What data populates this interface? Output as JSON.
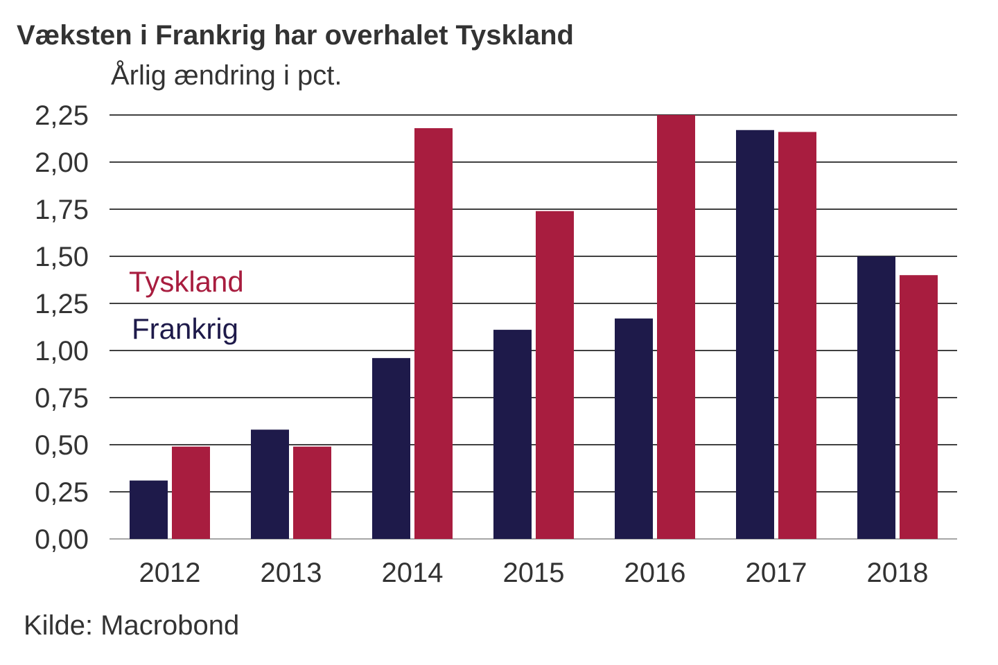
{
  "chart_data": {
    "type": "bar",
    "title": "Væksten i Frankrig har overhalet Tyskland",
    "subtitle": "Årlig ændring i pct.",
    "source": "Kilde: Macrobond",
    "categories": [
      "2012",
      "2013",
      "2014",
      "2015",
      "2016",
      "2017",
      "2018"
    ],
    "series": [
      {
        "name": "Frankrig",
        "color": "#1e1a4a",
        "values": [
          0.31,
          0.58,
          0.96,
          1.11,
          1.17,
          2.17,
          1.5
        ]
      },
      {
        "name": "Tyskland",
        "color": "#a81d3f",
        "values": [
          0.49,
          0.49,
          2.18,
          1.74,
          2.25,
          2.16,
          1.4
        ]
      }
    ],
    "ylim": [
      0,
      2.25
    ],
    "yticks": [
      "0,00",
      "0,25",
      "0,50",
      "0,75",
      "1,00",
      "1,25",
      "1,50",
      "1,75",
      "2,00",
      "2,25"
    ],
    "grid": true,
    "legend_placement": "left, inside plot",
    "xlabel": "",
    "ylabel": ""
  }
}
